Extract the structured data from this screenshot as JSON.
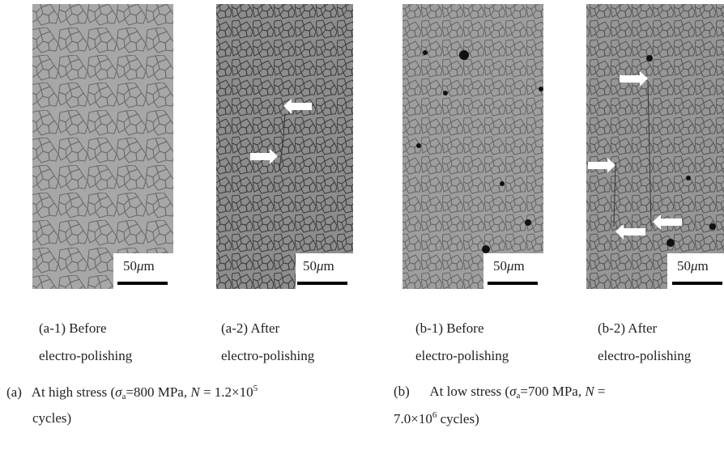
{
  "panels": [
    {
      "scale_bar": [
        "50",
        "μ",
        "m"
      ],
      "caption": [
        "(a-1) Before",
        "electro-polishing"
      ]
    },
    {
      "scale_bar": [
        "50",
        "μ",
        "m"
      ],
      "caption": [
        "(a-2) After",
        "electro-polishing"
      ]
    },
    {
      "scale_bar": [
        "50",
        "μ",
        "m"
      ],
      "caption": [
        "(b-1) Before",
        "electro-polishing"
      ]
    },
    {
      "scale_bar": [
        "50",
        "μ",
        "m"
      ],
      "caption": [
        "(b-2) After",
        "electro-polishing"
      ]
    }
  ],
  "groups": [
    {
      "lines": [
        [
          "(a)",
          "At high stress (",
          "σ",
          "a",
          "=800 MPa, ",
          "N",
          " = 1.2×10",
          "5"
        ],
        [
          "cycles)"
        ]
      ]
    },
    {
      "lines": [
        [
          "(b)",
          "At low stress (",
          "σ",
          "a",
          "=700 MPa, ",
          "N",
          " ="
        ],
        [
          "7.0×10",
          "6",
          " cycles)"
        ]
      ]
    }
  ]
}
